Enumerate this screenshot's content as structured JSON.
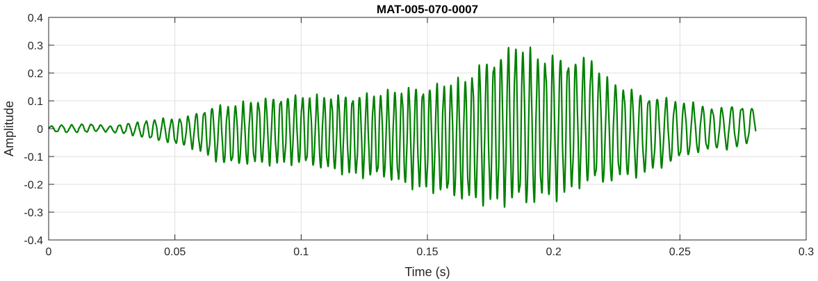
{
  "chart_data": {
    "type": "line",
    "title": "MAT-005-070-0007",
    "xlabel": "Time (s)",
    "ylabel": "Amplitude",
    "xlim": [
      0,
      0.3
    ],
    "ylim": [
      -0.4,
      0.4
    ],
    "grid": true,
    "line_color": "#008000",
    "xticks": [
      0,
      0.05,
      0.1,
      0.15,
      0.2,
      0.25,
      0.3
    ],
    "xtick_labels": [
      "0",
      "0.05",
      "0.1",
      "0.15",
      "0.2",
      "0.25",
      "0.3"
    ],
    "yticks": [
      -0.4,
      -0.3,
      -0.2,
      -0.1,
      0,
      0.1,
      0.2,
      0.3,
      0.4
    ],
    "ytick_labels": [
      "-0.4",
      "-0.3",
      "-0.2",
      "-0.1",
      "0",
      "0.1",
      "0.2",
      "0.3",
      "0.4"
    ],
    "series": [
      {
        "x": [
          0,
          0.005,
          0.01,
          0.015,
          0.02,
          0.025,
          0.03,
          0.035,
          0.04,
          0.045,
          0.05,
          0.055,
          0.06,
          0.065,
          0.07,
          0.075,
          0.08,
          0.085,
          0.09,
          0.095,
          0.1,
          0.105,
          0.11,
          0.115,
          0.12,
          0.125,
          0.13,
          0.135,
          0.14,
          0.145,
          0.15,
          0.155,
          0.16,
          0.165,
          0.17,
          0.175,
          0.18,
          0.185,
          0.19,
          0.195,
          0.2,
          0.205,
          0.21,
          0.215,
          0.22,
          0.225,
          0.23,
          0.235,
          0.24,
          0.245,
          0.25,
          0.255,
          0.26,
          0.265,
          0.27,
          0.275,
          0.28
        ],
        "y_upper": [
          0.01,
          0.015,
          0.015,
          0.02,
          0.015,
          0.01,
          0.02,
          0.025,
          0.035,
          0.04,
          0.04,
          0.05,
          0.07,
          0.09,
          0.095,
          0.1,
          0.11,
          0.12,
          0.125,
          0.13,
          0.13,
          0.13,
          0.13,
          0.135,
          0.135,
          0.14,
          0.14,
          0.15,
          0.16,
          0.17,
          0.17,
          0.18,
          0.19,
          0.2,
          0.25,
          0.28,
          0.3,
          0.33,
          0.31,
          0.28,
          0.29,
          0.28,
          0.27,
          0.28,
          0.2,
          0.18,
          0.16,
          0.14,
          0.13,
          0.12,
          0.11,
          0.1,
          0.09,
          0.08,
          0.09,
          0.09,
          0.08
        ],
        "y_lower": [
          -0.01,
          -0.015,
          -0.015,
          -0.015,
          -0.01,
          -0.015,
          -0.02,
          -0.03,
          -0.04,
          -0.05,
          -0.06,
          -0.07,
          -0.09,
          -0.12,
          -0.14,
          -0.14,
          -0.14,
          -0.14,
          -0.14,
          -0.14,
          -0.14,
          -0.15,
          -0.16,
          -0.17,
          -0.18,
          -0.19,
          -0.19,
          -0.2,
          -0.22,
          -0.23,
          -0.24,
          -0.25,
          -0.27,
          -0.28,
          -0.29,
          -0.29,
          -0.3,
          -0.29,
          -0.31,
          -0.28,
          -0.28,
          -0.26,
          -0.23,
          -0.22,
          -0.22,
          -0.2,
          -0.19,
          -0.18,
          -0.16,
          -0.14,
          -0.12,
          -0.1,
          -0.09,
          -0.08,
          -0.08,
          -0.07,
          -0.05
        ]
      }
    ]
  }
}
